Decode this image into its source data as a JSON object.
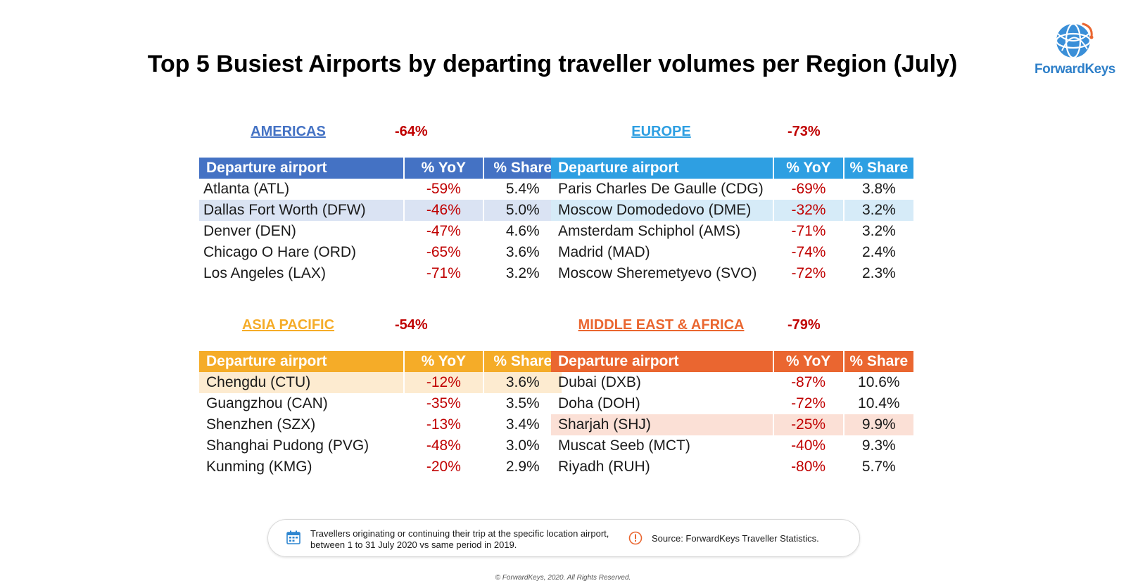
{
  "title": "Top 5 Busiest Airports by departing traveller volumes per Region (July)",
  "logo": {
    "text": "ForwardKeys",
    "icon": "globe-icon"
  },
  "columns": {
    "airport": "Departure airport",
    "yoy": "% YoY",
    "share": "% Share"
  },
  "colors": {
    "americas": "#4472c4",
    "americas_highlight": "#dae3f3",
    "europe": "#2e9fe2",
    "europe_highlight": "#d6ebf8",
    "asia_pacific": "#f5ac28",
    "asia_pacific_highlight": "#fdebd0",
    "mea": "#ea6630",
    "mea_highlight": "#fbe0d6",
    "negative": "#c00000"
  },
  "regions": {
    "americas": {
      "name": "AMERICAS",
      "yoy": "-64%",
      "rows": [
        {
          "airport": "Atlanta (ATL)",
          "yoy": "-59%",
          "share": "5.4%"
        },
        {
          "airport": "Dallas Fort Worth (DFW)",
          "yoy": "-46%",
          "share": "5.0%"
        },
        {
          "airport": "Denver (DEN)",
          "yoy": "-47%",
          "share": "4.6%"
        },
        {
          "airport": "Chicago O Hare (ORD)",
          "yoy": "-65%",
          "share": "3.6%"
        },
        {
          "airport": "Los Angeles (LAX)",
          "yoy": "-71%",
          "share": "3.2%"
        }
      ]
    },
    "europe": {
      "name": "EUROPE",
      "yoy": "-73%",
      "rows": [
        {
          "airport": "Paris Charles De Gaulle (CDG)",
          "yoy": "-69%",
          "share": "3.8%"
        },
        {
          "airport": "Moscow Domodedovo (DME)",
          "yoy": "-32%",
          "share": "3.2%"
        },
        {
          "airport": "Amsterdam Schiphol (AMS)",
          "yoy": "-71%",
          "share": "3.2%"
        },
        {
          "airport": "Madrid (MAD)",
          "yoy": "-74%",
          "share": "2.4%"
        },
        {
          "airport": "Moscow Sheremetyevo (SVO)",
          "yoy": "-72%",
          "share": "2.3%"
        }
      ]
    },
    "asia_pacific": {
      "name": "ASIA PACIFIC",
      "yoy": "-54%",
      "rows": [
        {
          "airport": "Chengdu (CTU)",
          "yoy": "-12%",
          "share": "3.6%"
        },
        {
          "airport": "Guangzhou (CAN)",
          "yoy": "-35%",
          "share": "3.5%"
        },
        {
          "airport": "Shenzhen (SZX)",
          "yoy": "-13%",
          "share": "3.4%"
        },
        {
          "airport": "Shanghai Pudong (PVG)",
          "yoy": "-48%",
          "share": "3.0%"
        },
        {
          "airport": "Kunming (KMG)",
          "yoy": "-20%",
          "share": "2.9%"
        }
      ]
    },
    "mea": {
      "name": "MIDDLE EAST & AFRICA",
      "yoy": "-79%",
      "rows": [
        {
          "airport": "Dubai (DXB)",
          "yoy": "-87%",
          "share": "10.6%"
        },
        {
          "airport": "Doha (DOH)",
          "yoy": "-72%",
          "share": "10.4%"
        },
        {
          "airport": "Sharjah (SHJ)",
          "yoy": "-25%",
          "share": "9.9%"
        },
        {
          "airport": "Muscat Seeb (MCT)",
          "yoy": "-40%",
          "share": "9.3%"
        },
        {
          "airport": "Riyadh (RUH)",
          "yoy": "-80%",
          "share": "5.7%"
        }
      ]
    }
  },
  "footer": {
    "note": "Travellers originating or continuing their trip at the specific location airport, between 1 to 31 July 2020 vs same period in 2019.",
    "note_icon": "calendar-icon",
    "source": "Source: ForwardKeys Traveller Statistics.",
    "source_icon": "alert-icon"
  },
  "copyright": "© ForwardKeys, 2020. All Rights Reserved."
}
